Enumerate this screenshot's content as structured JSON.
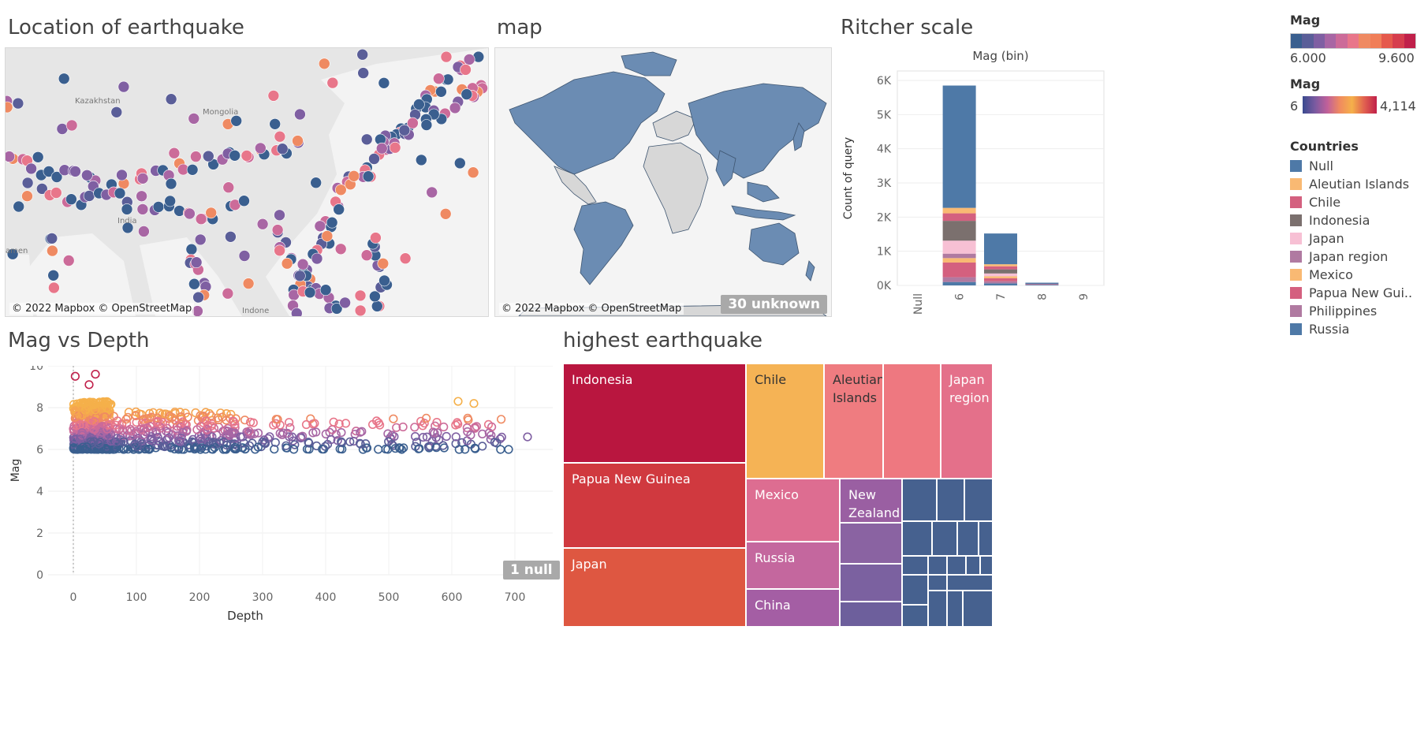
{
  "titles": {
    "location": "Location of earthquake",
    "map": "map",
    "richter": "Ritcher scale",
    "magdepth": "Mag vs Depth",
    "highest": "highest earthquake"
  },
  "maps": {
    "attribution": "© 2022 Mapbox © OpenStreetMap",
    "unknown_badge": "30 unknown",
    "place_labels": [
      "Kazakhstan",
      "Mongolia",
      "India",
      "amen",
      "Indone"
    ]
  },
  "legends": {
    "mag_title": "Mag",
    "mag_min": "6.000",
    "mag_max": "9.600",
    "mag_colors": [
      "#3a5f8f",
      "#5a5e98",
      "#7f5fa2",
      "#a866a4",
      "#cc6b99",
      "#e8768a",
      "#ef8a62",
      "#f07e58",
      "#e5594c",
      "#d63d4d",
      "#c0204a"
    ],
    "count_title": "Mag",
    "count_min": "6",
    "count_max": "4,114",
    "countries_title": "Countries",
    "countries": [
      {
        "name": "Null",
        "color": "#4e79a7"
      },
      {
        "name": "Aleutian Islands",
        "color": "#f9b973"
      },
      {
        "name": "Chile",
        "color": "#d4607f"
      },
      {
        "name": "Indonesia",
        "color": "#7b706e"
      },
      {
        "name": "Japan",
        "color": "#f7c0d4"
      },
      {
        "name": "Japan region",
        "color": "#b07aa1"
      },
      {
        "name": "Mexico",
        "color": "#f9b973"
      },
      {
        "name": "Papua New Gui..",
        "color": "#d4607f"
      },
      {
        "name": "Philippines",
        "color": "#b07aa1"
      },
      {
        "name": "Russia",
        "color": "#4e79a7"
      }
    ]
  },
  "scatter": {
    "null_badge": "1 null"
  },
  "treemap": {
    "labels": {
      "indonesia": "Indonesia",
      "chile": "Chile",
      "aleutian": "Aleutian Islands",
      "japan_region": "Japan region",
      "png": "Papua New Guinea",
      "mexico": "Mexico",
      "new_zealand": "New Zealand",
      "japan": "Japan",
      "russia": "Russia",
      "china": "China"
    }
  },
  "chart_data": [
    {
      "type": "bar",
      "title": "",
      "header": "Mag (bin)",
      "ylabel": "Count of query",
      "categories": [
        "Null",
        "6",
        "7",
        "8",
        "9"
      ],
      "ylim": [
        0,
        6000
      ],
      "yticks": [
        "0K",
        "1K",
        "2K",
        "3K",
        "4K",
        "5K",
        "6K"
      ],
      "stacks": [
        [],
        [
          {
            "value": 100,
            "color": "#4e79a7"
          },
          {
            "value": 140,
            "color": "#b07aa1"
          },
          {
            "value": 430,
            "color": "#d4607f"
          },
          {
            "value": 130,
            "color": "#f9b973"
          },
          {
            "value": 130,
            "color": "#b07aa1"
          },
          {
            "value": 380,
            "color": "#f7c0d4"
          },
          {
            "value": 580,
            "color": "#7b706e"
          },
          {
            "value": 220,
            "color": "#d4607f"
          },
          {
            "value": 160,
            "color": "#f9b973"
          },
          {
            "value": 3580,
            "color": "#4e79a7"
          }
        ],
        [
          {
            "value": 60,
            "color": "#4e79a7"
          },
          {
            "value": 60,
            "color": "#b07aa1"
          },
          {
            "value": 90,
            "color": "#d4607f"
          },
          {
            "value": 60,
            "color": "#f9b973"
          },
          {
            "value": 80,
            "color": "#f7c0d4"
          },
          {
            "value": 120,
            "color": "#7b706e"
          },
          {
            "value": 90,
            "color": "#d4607f"
          },
          {
            "value": 60,
            "color": "#f9b973"
          },
          {
            "value": 900,
            "color": "#4e79a7"
          }
        ],
        [
          {
            "value": 20,
            "color": "#4e79a7"
          },
          {
            "value": 20,
            "color": "#d4607f"
          },
          {
            "value": 40,
            "color": "#4e79a7"
          }
        ],
        []
      ]
    },
    {
      "type": "scatter",
      "title": "",
      "xlabel": "Depth",
      "ylabel": "Mag",
      "xlim": [
        -40,
        760
      ],
      "ylim": [
        0,
        10
      ],
      "xticks": [
        0,
        100,
        200,
        300,
        400,
        500,
        600,
        700
      ],
      "yticks": [
        0,
        2,
        4,
        6,
        8,
        10
      ],
      "notable_points": [
        {
          "x": 3,
          "y": 9.5
        },
        {
          "x": 35,
          "y": 9.6
        },
        {
          "x": 25,
          "y": 9.1
        },
        {
          "x": 610,
          "y": 8.3
        },
        {
          "x": 635,
          "y": 8.2
        },
        {
          "x": 720,
          "y": 6.6
        },
        {
          "x": 690,
          "y": 6.0
        }
      ],
      "band": {
        "x": [
          0,
          700
        ],
        "y": [
          6.0,
          8.0
        ]
      }
    }
  ]
}
